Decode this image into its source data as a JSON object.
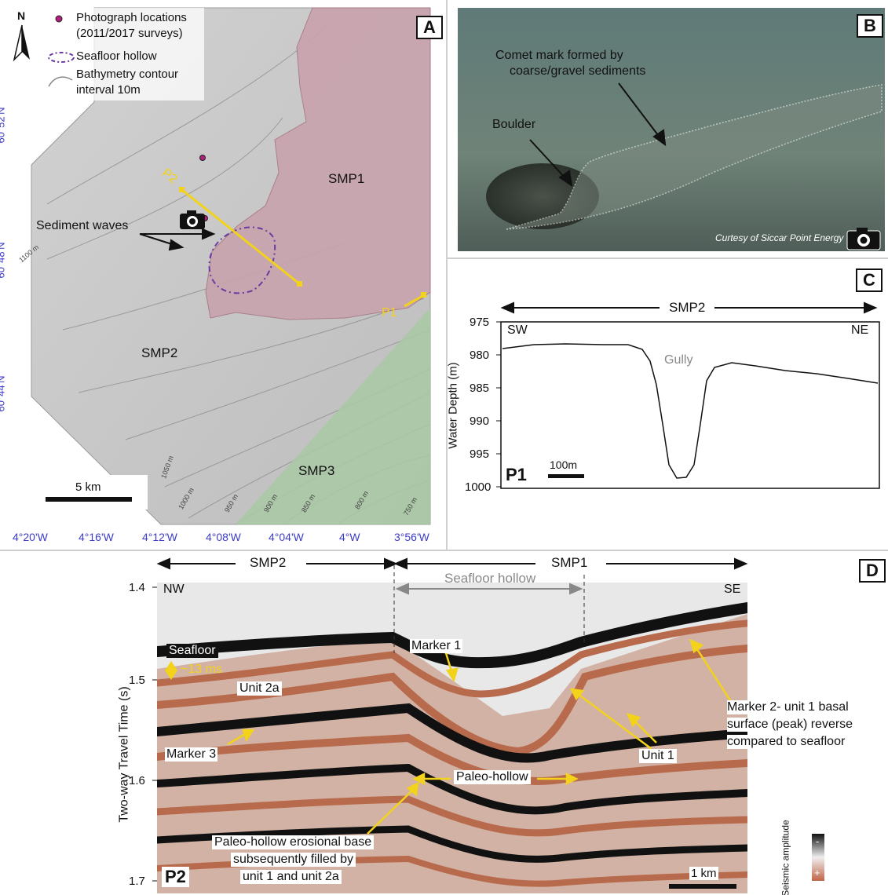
{
  "panelA": {
    "tag": "A",
    "north": "N",
    "legend": {
      "photo": "Photograph locations",
      "photo2": "(2011/2017 surveys)",
      "hollow": "Seafloor hollow",
      "contour": "Bathymetry contour",
      "contour2": "interval 10m"
    },
    "lat_labels": [
      "60°52'N",
      "60°48'N",
      "60°44'N"
    ],
    "lon_labels": [
      "4°20'W",
      "4°16'W",
      "4°12'W",
      "4°08'W",
      "4°04'W",
      "4°W",
      "3°56'W"
    ],
    "zones": [
      "SMP1",
      "SMP2",
      "SMP3"
    ],
    "profiles": [
      "P1",
      "P2"
    ],
    "sediment_waves": "Sediment waves",
    "scale": "5 km",
    "contours": [
      "1100 m",
      "1050 m",
      "1000 m",
      "950 m",
      "900 m",
      "850 m",
      "800 m",
      "750 m"
    ],
    "colors": {
      "smp1": "#c9a3ad",
      "smp3": "#a9c9a5",
      "profile": "#f2d21a",
      "hollow": "#6a3aa0"
    }
  },
  "panelB": {
    "tag": "B",
    "comet": "Comet mark formed by",
    "comet2": "coarse/gravel sediments",
    "boulder": "Boulder",
    "credit": "Curtesy of Siccar Point Energy"
  },
  "panelC": {
    "tag": "C",
    "zone": "SMP2",
    "sw": "SW",
    "ne": "NE",
    "gully": "Gully",
    "ylabel": "Water Depth (m)",
    "yticks": [
      "975",
      "980",
      "985",
      "990",
      "995",
      "1000"
    ],
    "profile": "P1",
    "scale": "100m"
  },
  "panelD": {
    "tag": "D",
    "smp2": "SMP2",
    "smp1": "SMP1",
    "hollow": "Seafloor hollow",
    "nw": "NW",
    "se": "SE",
    "ylabel": "Two-way Travel Time  (s)",
    "yticks": [
      "1.4",
      "1.5",
      "1.6",
      "1.7"
    ],
    "seafloor": "Seafloor",
    "ms": "~13 ms",
    "unit2a": "Unit 2a",
    "marker1": "Marker 1",
    "marker3": "Marker 3",
    "paleo": "Paleo-hollow",
    "unit1": "Unit 1",
    "marker2_l1": "Marker 2- unit 1 basal",
    "marker2_l2": "surface (peak) reverse",
    "marker2_l3": "compared to seafloor",
    "paleo_base_l1": "Paleo-hollow erosional base",
    "paleo_base_l2": "subsequently filled by",
    "paleo_base_l3": "unit 1 and unit 2a",
    "profile": "P2",
    "scale": "1 km",
    "amp": "Seismic amplitude",
    "minus": "-",
    "plus": "+"
  }
}
